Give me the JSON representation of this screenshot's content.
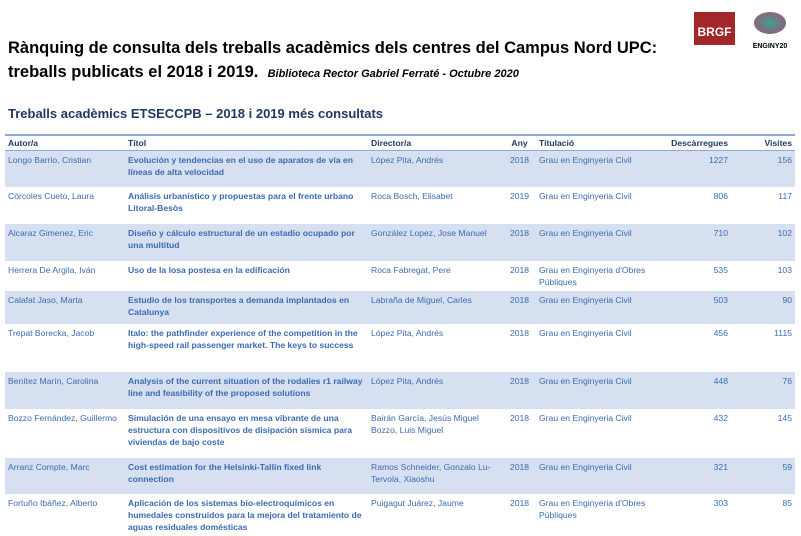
{
  "title_line1": "Rànquing de consulta dels treballs acadèmics dels centres del Campus Nord UPC:",
  "title_line2": "treballs publicats el 2018 i 2019.",
  "title_sub": "Biblioteca Rector Gabriel Ferraté -  Octubre 2020",
  "logos": {
    "brgf": "BRGF",
    "enginy": "ENGINY20"
  },
  "section_title": "Treballs acadèmics ETSECCPB – 2018 i 2019 més consultats",
  "colors": {
    "header_text": "#1f3864",
    "row_text": "#3a6bb0",
    "row_shade": "#d6e0f0",
    "logo": "#a3262b"
  },
  "table": {
    "headers": [
      "Autor/a",
      "Títol",
      "Director/a",
      "Any",
      "Titulació",
      "Descàrregues",
      "Visites"
    ],
    "rows": [
      [
        "Longo Barrio, Cristian",
        "Evolución y tendencias en el uso de aparatos de vía en líneas de alta velocidad",
        "López Pita, Andrés",
        "2018",
        "Grau en Enginyeria Civil",
        "1227",
        "156"
      ],
      [
        "Córcoles Cueto, Laura",
        "Análisis urbanístico y propuestas para el frente urbano Litoral-Besòs",
        "Roca Bosch, Elisabet",
        "2019",
        "Grau en Enginyeria Civil",
        "806",
        "117"
      ],
      [
        "Alcaraz Gimenez, Eric",
        "Diseño y cálculo estructural de un estadio ocupado por una multitud",
        "González Lopez, Jose Manuel",
        "2018",
        "Grau en Enginyeria Civil",
        "710",
        "102"
      ],
      [
        "Herrera De Argila, Iván",
        "Uso de la losa postesa en la edificación",
        "Roca Fabregat, Pere",
        "2018",
        "Grau en Enginyeria d'Obres Públiques",
        "535",
        "103"
      ],
      [
        "Calafat Jaso, Marta",
        "Estudio de los transportes a demanda implantados en Catalunya",
        "Labraña de Miguel, Carles",
        "2018",
        "Grau en Enginyeria Civil",
        "503",
        "90"
      ],
      [
        "Trepat Borecka, Jacob",
        "Italo: the pathfinder experience of the competition in the high-speed rail passenger market. The keys to success",
        "López Pita, Andrés",
        "2018",
        "Grau en Enginyeria Civil",
        "456",
        "1115"
      ],
      [
        "Benítez Marín, Carolina",
        "Analysis of the current situation of the rodalies r1 railway line and feasibility of the proposed solutions",
        "López Pita, Andrés",
        "2018",
        "Grau en Enginyeria Civil",
        "448",
        "76"
      ],
      [
        "Bozzo Fernández, Guillermo",
        "Simulación de una ensayo en mesa vibrante de una estructura con dispositivos de disipación sísmica para viviendas de bajo coste",
        "Bairán García, Jesús Miguel Bozzo, Luis Miguel",
        "2018",
        "Grau en Enginyeria Civil",
        "432",
        "145"
      ],
      [
        "Arranz Compte, Marc",
        "Cost estimation for the Helsinki-Tallin fixed link connection",
        "Ramos Schneider, Gonzalo Lu-Tervola, Xiaoshu",
        "2018",
        "Grau en Enginyeria Civil",
        "321",
        "59"
      ],
      [
        "Fortuño Ibáñez, Alberto",
        "Aplicación de los sistemas bio-electroquímicos en humedales construidos para la mejora del tratamiento de aguas residuales domésticas",
        "Puigagut Juárez, Jaume",
        "2018",
        "Grau en Enginyeria d'Obres Públiques",
        "303",
        "85"
      ]
    ]
  }
}
